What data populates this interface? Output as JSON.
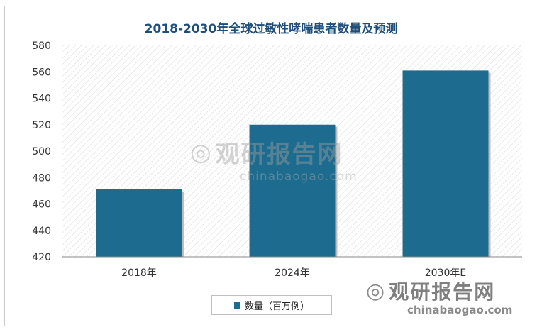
{
  "chart_data": {
    "type": "bar",
    "title": "2018-2030年全球过敏性哮喘患者数量及预测",
    "categories": [
      "2018年",
      "2024年",
      "2030年E"
    ],
    "series": [
      {
        "name": "数量（百万例）",
        "values": [
          471,
          520,
          561
        ]
      }
    ],
    "ylim": [
      420,
      580
    ],
    "yticks": [
      420,
      440,
      460,
      480,
      500,
      520,
      540,
      560,
      580
    ],
    "grid": false,
    "legend": "bottom",
    "colors": {
      "bar": "#1d6b8e",
      "plot_hatch": "#d9d9d9",
      "title": "#1f4e79"
    }
  },
  "watermark": {
    "brand": "观研报告网",
    "site": "chinabaogao.com"
  }
}
